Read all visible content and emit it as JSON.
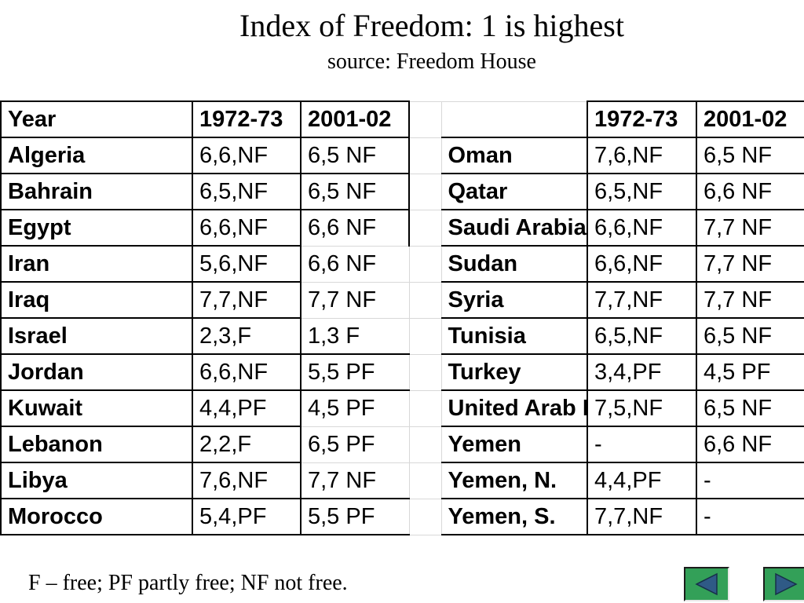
{
  "slide": {
    "title": "Index of Freedom: 1 is highest",
    "subtitle": "source: Freedom House",
    "footnote": "F – free; PF partly free; NF not free."
  },
  "table": {
    "headers": [
      "Year",
      "1972-73",
      "2001-02",
      "",
      "",
      "1972-73",
      "2001-02"
    ],
    "rows": [
      [
        "Algeria",
        "6,6,NF",
        "6,5 NF",
        "",
        "Oman",
        "7,6,NF",
        "6,5 NF"
      ],
      [
        "Bahrain",
        "6,5,NF",
        "6,5 NF",
        "",
        "Qatar",
        "6,5,NF",
        "6,6 NF"
      ],
      [
        "Egypt",
        "6,6,NF",
        "6,6 NF",
        "",
        "Saudi Arabia",
        "6,6,NF",
        "7,7 NF"
      ],
      [
        "Iran",
        "5,6,NF",
        "6,6 NF",
        "",
        "Sudan",
        "6,6,NF",
        "7,7 NF"
      ],
      [
        "Iraq",
        "7,7,NF",
        "7,7 NF",
        "",
        "Syria",
        "7,7,NF",
        "7,7 NF"
      ],
      [
        "Israel",
        "2,3,F",
        "1,3 F",
        "",
        "Tunisia",
        "6,5,NF",
        "6,5 NF"
      ],
      [
        "Jordan",
        "6,6,NF",
        "5,5 PF",
        "",
        "Turkey",
        "3,4,PF",
        "4,5 PF"
      ],
      [
        "Kuwait",
        "4,4,PF",
        "4,5 PF",
        "",
        "United Arab Emirates",
        "7,5,NF",
        "6,5 NF"
      ],
      [
        "Lebanon",
        "2,2,F",
        "6,5 PF",
        "",
        "Yemen",
        "-",
        "6,6 NF"
      ],
      [
        "Libya",
        "7,6,NF",
        "7,7 NF",
        "",
        "Yemen, N.",
        "4,4,PF",
        "-"
      ],
      [
        "Morocco",
        "5,4,PF",
        "5,5 PF",
        "",
        "Yemen, S.",
        "7,7,NF",
        "-"
      ]
    ]
  },
  "navigation": {
    "previous_icon": "triangle-left-icon",
    "next_icon": "triangle-right-icon",
    "button_color": "#33a058",
    "arrow_color": "#2f5a86"
  }
}
